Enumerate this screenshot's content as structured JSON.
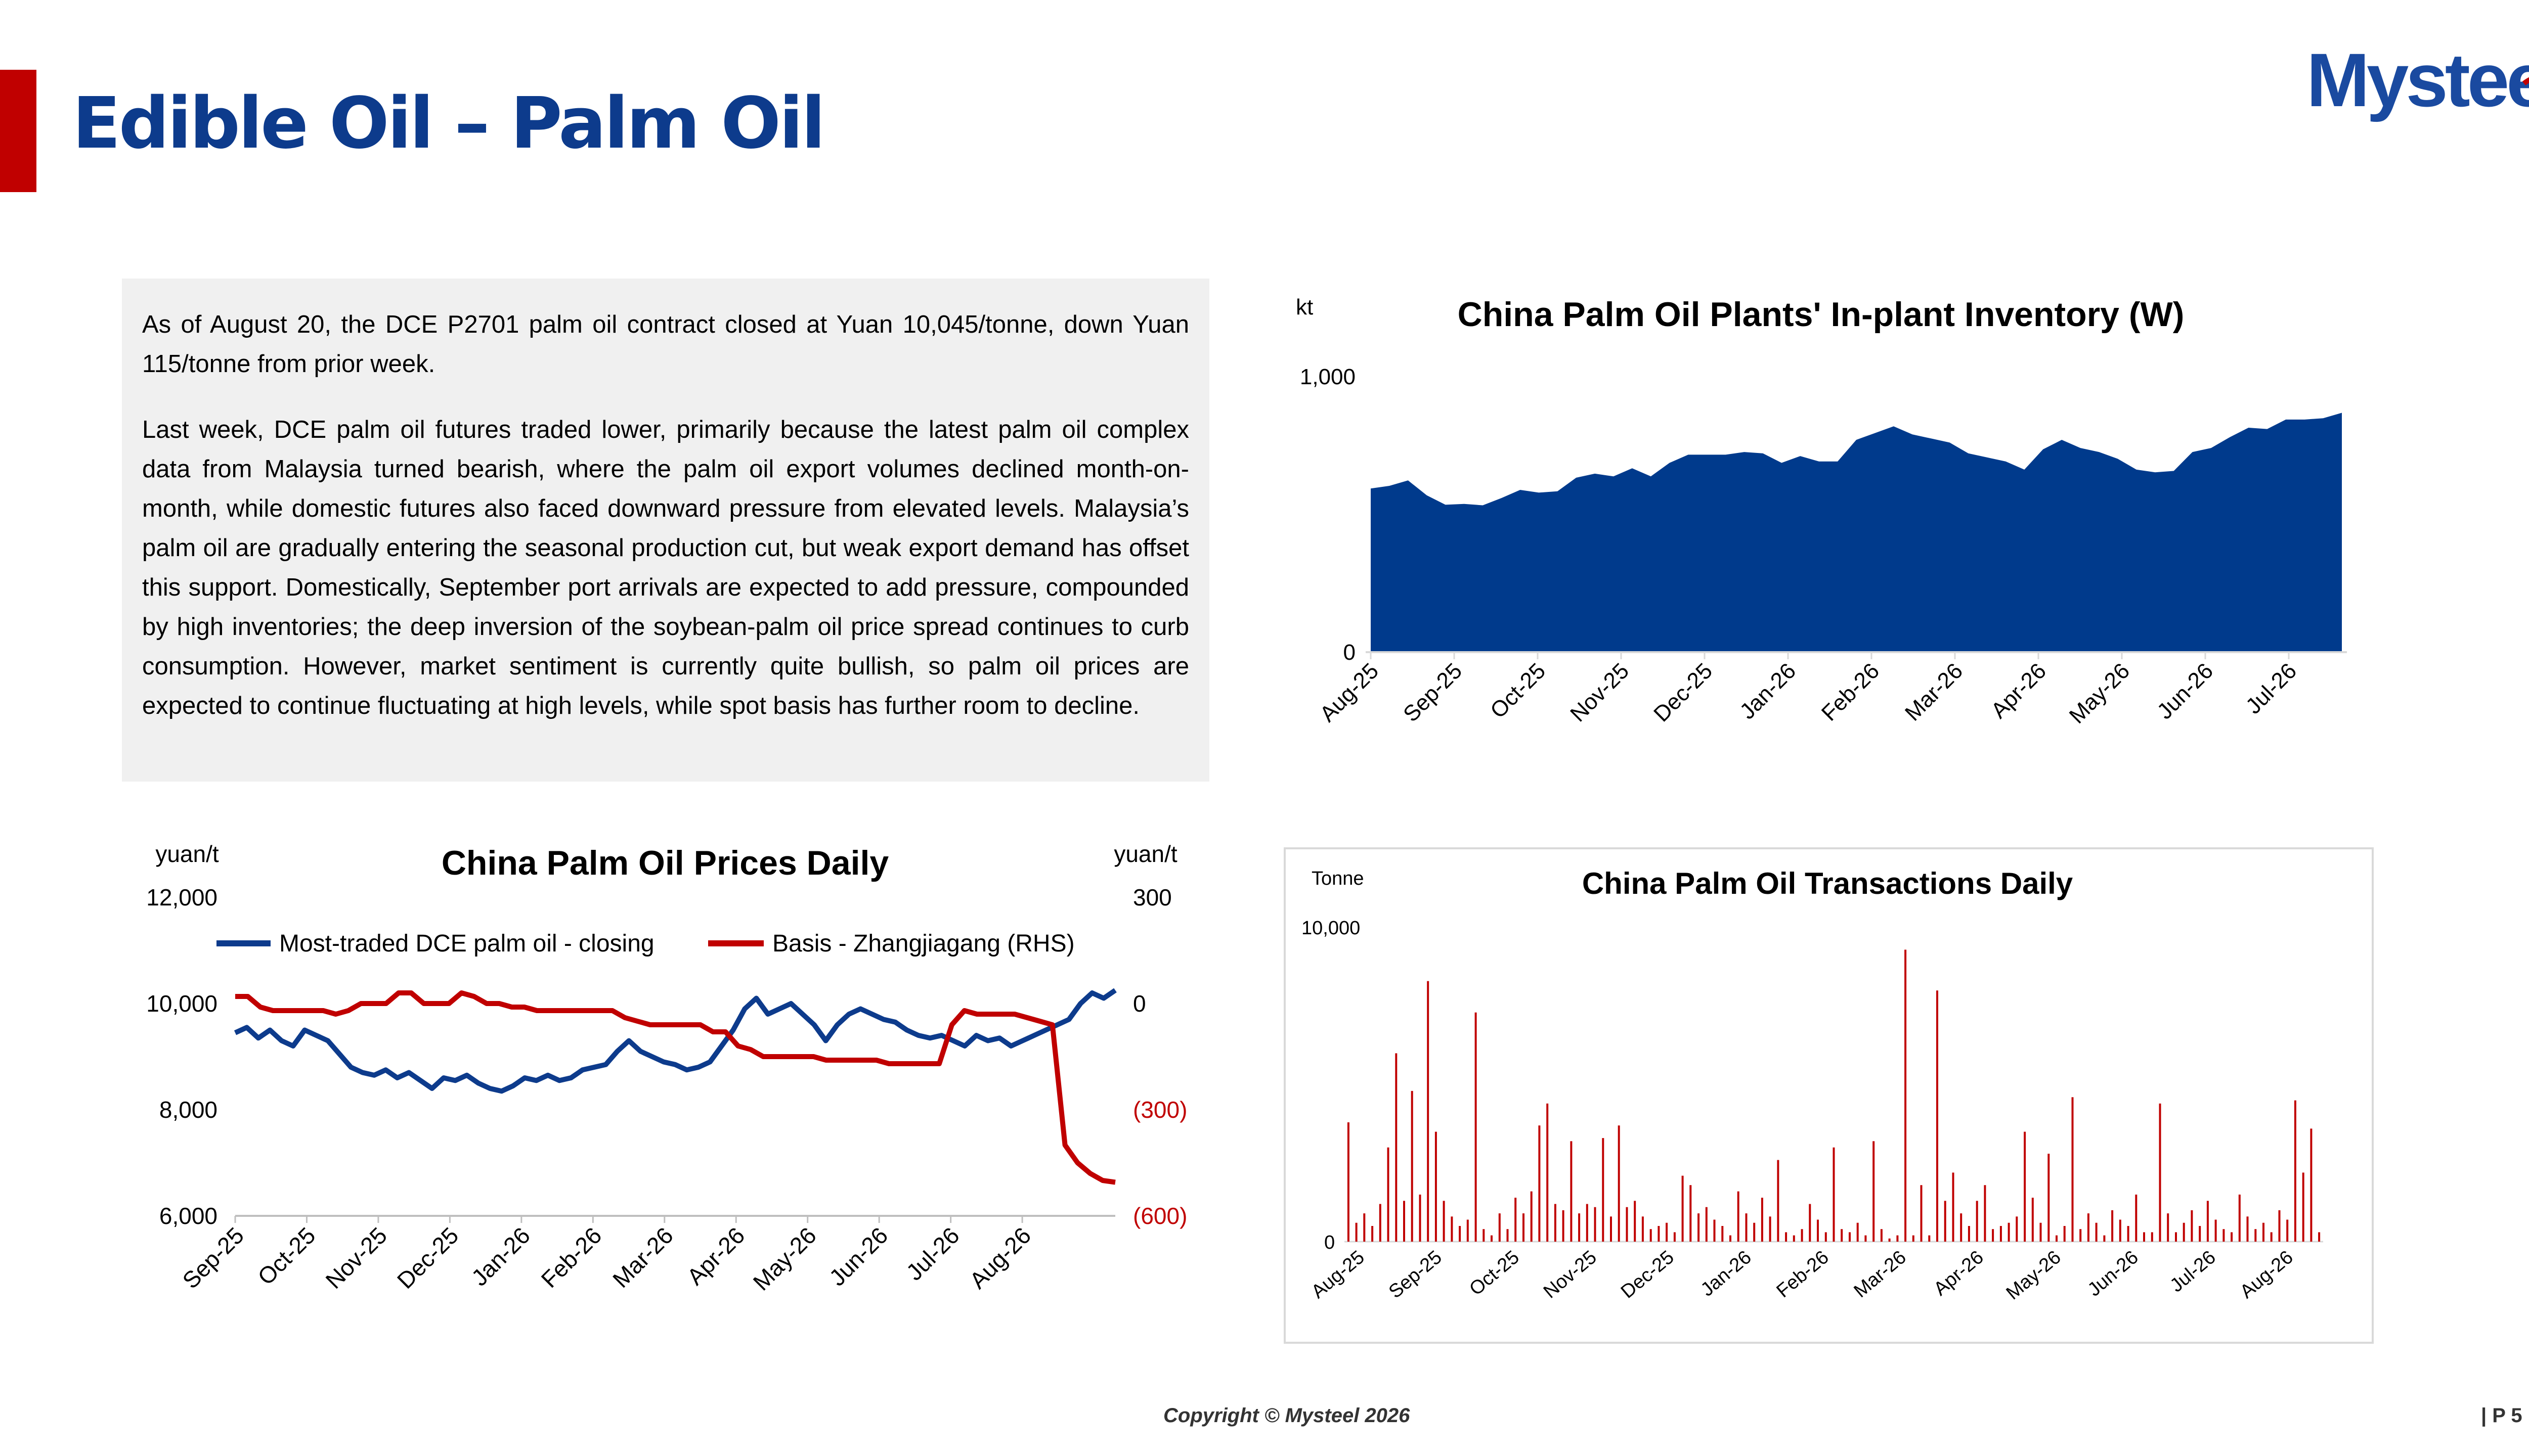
{
  "header": {
    "title": "Edible Oil – Palm Oil",
    "logo_text": "Mysteel",
    "logo_color": "#1a4aa0",
    "accent_red": "#c00000"
  },
  "commentary": {
    "p1": "As of August 20, the DCE P2701 palm oil contract closed at Yuan 10,045/tonne, down Yuan 115/tonne from prior week.",
    "p2": "Last week, DCE palm oil futures traded lower, primarily because the latest palm oil complex data from Malaysia turned bearish, where the palm oil export volumes declined month-on-month, while domestic futures also faced downward pressure from elevated levels. Malaysia’s palm oil are gradually entering the seasonal production cut, but weak export demand has offset this support. Domestically, September port arrivals are expected to add pressure, compounded by high inventories; the deep inversion of the soybean-palm oil price spread continues to curb consumption. However, market sentiment is currently quite bullish, so palm oil prices are expected to continue fluctuating at high levels, while spot basis has further room to decline."
  },
  "footer": {
    "copyright": "Copyright © Mysteel 2026",
    "page": "| P 5"
  },
  "chart_data": [
    {
      "type": "area",
      "title": "China Palm Oil Plants' In-plant Inventory (W)",
      "ylabel": "kt",
      "ylim": [
        0,
        1000
      ],
      "yticks": [
        "0",
        "1,000"
      ],
      "x_tick_labels": [
        "Aug-25",
        "Sep-25",
        "Oct-25",
        "Nov-25",
        "Dec-25",
        "Jan-26",
        "Feb-26",
        "Mar-26",
        "Apr-26",
        "May-26",
        "Jun-26",
        "Jul-26"
      ],
      "color": "#003a8c",
      "series": [
        {
          "values": [
            605,
            615,
            635,
            580,
            545,
            548,
            543,
            570,
            600,
            590,
            595,
            645,
            660,
            650,
            680,
            650,
            700,
            730,
            730,
            730,
            740,
            735,
            700,
            725,
            705,
            705,
            785,
            810,
            835,
            805,
            790,
            775,
            735,
            720,
            705,
            675,
            750,
            785,
            755,
            740,
            715,
            675,
            665,
            670,
            740,
            755,
            795,
            830,
            825,
            860,
            860,
            865,
            885
          ]
        }
      ]
    },
    {
      "type": "line",
      "title": "China Palm Oil Prices Daily",
      "ylabel_left": "yuan/t",
      "ylabel_right": "yuan/t",
      "ylim_left": [
        6000,
        12000
      ],
      "ylim_right": [
        -600,
        300
      ],
      "yticks_left": [
        "6,000",
        "8,000",
        "10,000",
        "12,000"
      ],
      "yticks_right": [
        "(600)",
        "(300)",
        "0",
        "300"
      ],
      "right_axis_negative_color": "#c00000",
      "x_tick_labels": [
        "Sep-25",
        "Oct-25",
        "Nov-25",
        "Dec-25",
        "Jan-26",
        "Feb-26",
        "Mar-26",
        "Apr-26",
        "May-26",
        "Jun-26",
        "Jul-26",
        "Aug-26"
      ],
      "legend": "top",
      "series": [
        {
          "name": "Most-traded DCE palm oil - closing",
          "axis": "left",
          "color": "#0d3b8c",
          "values": [
            9450,
            9550,
            9350,
            9500,
            9300,
            9200,
            9500,
            9400,
            9300,
            9050,
            8800,
            8700,
            8650,
            8750,
            8600,
            8700,
            8550,
            8400,
            8600,
            8550,
            8650,
            8500,
            8400,
            8350,
            8450,
            8600,
            8550,
            8650,
            8550,
            8600,
            8750,
            8800,
            8850,
            9100,
            9300,
            9100,
            9000,
            8900,
            8850,
            8750,
            8800,
            8900,
            9200,
            9500,
            9900,
            10100,
            9800,
            9900,
            10000,
            9800,
            9600,
            9300,
            9600,
            9800,
            9900,
            9800,
            9700,
            9650,
            9500,
            9400,
            9350,
            9400,
            9300,
            9200,
            9400,
            9300,
            9350,
            9200,
            9300,
            9400,
            9500,
            9600,
            9700,
            10000,
            10200,
            10100,
            10250
          ]
        },
        {
          "name": "Basis - Zhangjiagang (RHS)",
          "axis": "right",
          "color": "#c00000",
          "values": [
            20,
            20,
            -10,
            -20,
            -20,
            -20,
            -20,
            -20,
            -30,
            -20,
            0,
            0,
            0,
            30,
            30,
            0,
            0,
            0,
            30,
            20,
            0,
            0,
            -10,
            -10,
            -20,
            -20,
            -20,
            -20,
            -20,
            -20,
            -20,
            -40,
            -50,
            -60,
            -60,
            -60,
            -60,
            -60,
            -80,
            -80,
            -120,
            -130,
            -150,
            -150,
            -150,
            -150,
            -150,
            -160,
            -160,
            -160,
            -160,
            -160,
            -170,
            -170,
            -170,
            -170,
            -170,
            -60,
            -20,
            -30,
            -30,
            -30,
            -30,
            -40,
            -50,
            -60,
            -400,
            -450,
            -480,
            -500,
            -505
          ]
        }
      ]
    },
    {
      "type": "bar",
      "title": "China Palm Oil Transactions Daily",
      "ylabel": "Tonne",
      "ylim": [
        0,
        10000
      ],
      "yticks": [
        "0",
        "10,000"
      ],
      "x_tick_labels": [
        "Aug-25",
        "Sep-25",
        "Oct-25",
        "Nov-25",
        "Dec-25",
        "Jan-26",
        "Feb-26",
        "Mar-26",
        "Apr-26",
        "May-26",
        "Jun-26",
        "Jul-26",
        "Aug-26"
      ],
      "color": "#c00000",
      "values": [
        3800,
        600,
        900,
        500,
        1200,
        3000,
        6000,
        1300,
        4800,
        1500,
        8300,
        3500,
        1300,
        800,
        500,
        700,
        7300,
        400,
        200,
        900,
        400,
        1400,
        900,
        1600,
        3700,
        4400,
        1200,
        1000,
        3200,
        900,
        1200,
        1100,
        3300,
        800,
        3700,
        1100,
        1300,
        800,
        400,
        500,
        600,
        300,
        2100,
        1800,
        900,
        1100,
        700,
        500,
        200,
        1600,
        900,
        600,
        1400,
        800,
        2600,
        300,
        200,
        400,
        1200,
        700,
        300,
        3000,
        400,
        300,
        600,
        200,
        3200,
        400,
        100,
        200,
        9300,
        200,
        1800,
        200,
        8000,
        1300,
        2200,
        900,
        500,
        1300,
        1800,
        400,
        500,
        600,
        800,
        3500,
        1400,
        600,
        2800,
        200,
        500,
        4600,
        400,
        900,
        600,
        200,
        1000,
        700,
        500,
        1500,
        300,
        300,
        4400,
        900,
        300,
        600,
        1000,
        500,
        1300,
        700,
        400,
        300,
        1500,
        800,
        400,
        600,
        300,
        1000,
        700,
        4500,
        2200,
        3600,
        300
      ]
    }
  ]
}
